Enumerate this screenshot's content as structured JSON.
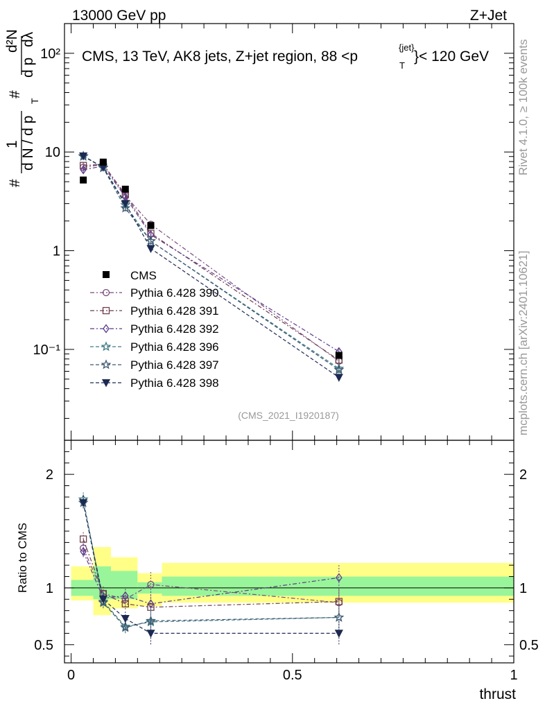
{
  "header": {
    "left": "13000 GeV pp",
    "right": "Z+Jet"
  },
  "side": {
    "top": "Rivet 4.1.0, ≥ 100k events",
    "bottom": "mcplots.cern.ch [arXiv:2401.10621]"
  },
  "ylabel": {
    "hash1": "#",
    "one": "1",
    "dN": "d N / d p",
    "T": "T",
    "hash2": "#",
    "d2N": "d²N",
    "dpTdl": "d p",
    "lam": "dλ"
  },
  "annotation": "(CMS_2021_I1920187)",
  "chart_data": [
    {
      "type": "line",
      "panel": "main",
      "title": "CMS, 13 TeV, AK8 jets, Z+jet region, 88 <p",
      "title_sup": "{jet}",
      "title_sub": "T",
      "title_end": "}< 120 GeV",
      "yscale": "log",
      "ylim": [
        0.012,
        200
      ],
      "xlim": [
        -0.015,
        1.0
      ],
      "yticks": [
        {
          "v": 0.1,
          "label": "10⁻¹"
        },
        {
          "v": 1,
          "label": "1"
        },
        {
          "v": 10,
          "label": "10"
        },
        {
          "v": 100,
          "label": "10²"
        }
      ],
      "x": [
        0.0275,
        0.0725,
        0.1225,
        0.18,
        0.605
      ],
      "data": {
        "name": "CMS",
        "values": [
          5.2,
          7.9,
          4.2,
          1.8,
          0.087
        ],
        "color": "#000000"
      },
      "series": [
        {
          "name": "Pythia 6.428 390",
          "marker": "circle",
          "dash": "6,3,2,3",
          "color": "#7a4a7c",
          "values": [
            7.0,
            7.5,
            3.6,
            1.85,
            0.076
          ]
        },
        {
          "name": "Pythia 6.428 391",
          "marker": "square",
          "dash": "6,3,2,3",
          "color": "#6e3e4a",
          "values": [
            7.3,
            7.5,
            3.7,
            1.5,
            0.078
          ]
        },
        {
          "name": "Pythia 6.428 392",
          "marker": "diamond",
          "dash": "6,3,2,3",
          "color": "#5a3a8a",
          "values": [
            6.6,
            7.2,
            3.5,
            1.45,
            0.095
          ]
        },
        {
          "name": "Pythia 6.428 396",
          "marker": "star",
          "dash": "5,3",
          "color": "#3d7a84",
          "values": [
            9.0,
            7.0,
            2.9,
            1.25,
            0.064
          ]
        },
        {
          "name": "Pythia 6.428 397",
          "marker": "star",
          "dash": "5,3",
          "color": "#3e5870",
          "values": [
            9.1,
            6.9,
            2.7,
            1.25,
            0.062
          ]
        },
        {
          "name": "Pythia 6.428 398",
          "marker": "triangle-down",
          "dash": "5,3",
          "color": "#1c2a52",
          "values": [
            9.1,
            7.0,
            3.0,
            1.05,
            0.052
          ]
        }
      ],
      "legend_position": "center-left"
    },
    {
      "type": "line",
      "panel": "ratio",
      "ylabel": "Ratio to CMS",
      "xlabel": "thrust",
      "ylim": [
        0.34,
        2.3
      ],
      "xlim": [
        -0.015,
        1.0
      ],
      "yticks": [
        {
          "v": 0.5,
          "label": "0.5"
        },
        {
          "v": 1,
          "label": "1"
        },
        {
          "v": 2,
          "label": "2"
        }
      ],
      "xticks": [
        {
          "v": 0,
          "label": "0"
        },
        {
          "v": 0.5,
          "label": "0.5"
        },
        {
          "v": 1,
          "label": "1"
        }
      ],
      "bins": [
        {
          "lo": 0.0,
          "hi": 0.05,
          "inner": [
            0.93,
            1.07
          ],
          "outer": [
            0.89,
            1.19
          ]
        },
        {
          "lo": 0.05,
          "hi": 0.09,
          "inner": [
            0.9,
            1.19
          ],
          "outer": [
            0.76,
            1.36
          ]
        },
        {
          "lo": 0.09,
          "hi": 0.15,
          "inner": [
            0.9,
            1.15
          ],
          "outer": [
            0.82,
            1.27
          ]
        },
        {
          "lo": 0.15,
          "hi": 0.205,
          "inner": [
            0.95,
            1.05
          ],
          "outer": [
            0.84,
            1.13
          ]
        },
        {
          "lo": 0.205,
          "hi": 1.0,
          "inner": [
            0.93,
            1.1
          ],
          "outer": [
            0.87,
            1.22
          ]
        }
      ],
      "x": [
        0.0275,
        0.0725,
        0.1225,
        0.18,
        0.605
      ],
      "series": [
        {
          "name": "Pythia 6.428 390",
          "values": [
            1.35,
            0.95,
            0.9,
            1.03,
            0.87
          ]
        },
        {
          "name": "Pythia 6.428 391",
          "values": [
            1.43,
            0.95,
            0.86,
            0.83,
            0.88
          ]
        },
        {
          "name": "Pythia 6.428 392",
          "values": [
            1.32,
            0.91,
            0.93,
            0.86,
            1.09
          ]
        },
        {
          "name": "Pythia 6.428 396",
          "values": [
            1.78,
            0.88,
            0.66,
            0.7,
            0.74
          ]
        },
        {
          "name": "Pythia 6.428 397",
          "values": [
            1.75,
            0.87,
            0.65,
            0.71,
            0.74
          ]
        },
        {
          "name": "Pythia 6.428 398",
          "values": [
            1.75,
            0.9,
            0.73,
            0.6,
            0.6
          ]
        }
      ]
    }
  ]
}
